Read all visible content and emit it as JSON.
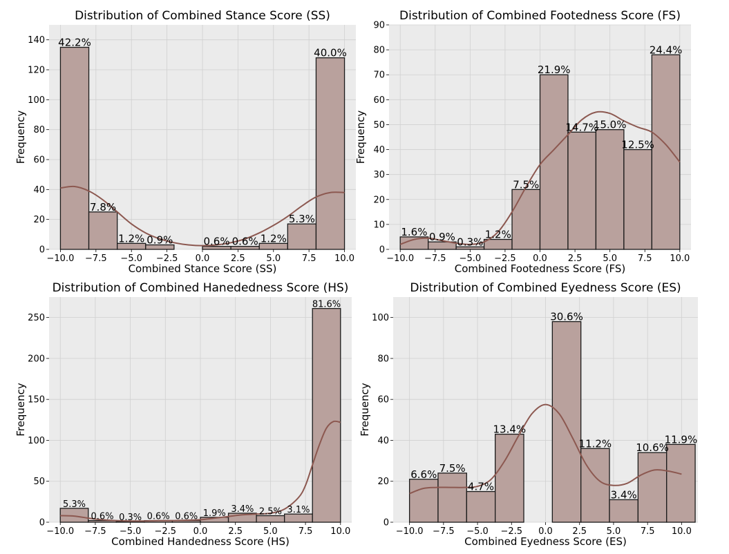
{
  "chart_data": [
    {
      "type": "bar",
      "title": "Distribution of Combined Stance Score (SS)",
      "xlabel": "Combined Stance Score (SS)",
      "ylabel": "Frequency",
      "xlim": [
        -10.8,
        10.8
      ],
      "ylim": [
        0,
        150
      ],
      "xticks": [
        -10,
        -7.5,
        -5,
        -2.5,
        0,
        2.5,
        5,
        7.5,
        10
      ],
      "xtick_labels": [
        "−10.0",
        "−7.5",
        "−5.0",
        "−2.5",
        "0.0",
        "2.5",
        "5.0",
        "7.5",
        "10.0"
      ],
      "yticks": [
        0,
        20,
        40,
        60,
        80,
        100,
        120,
        140
      ],
      "grid": true,
      "bin_edges": [
        -10,
        -8,
        -6,
        -4,
        -2,
        0,
        2,
        4,
        6,
        8,
        10
      ],
      "values": [
        135,
        25,
        4,
        3,
        0,
        2,
        2,
        4,
        17,
        128
      ],
      "bar_labels": [
        "42.2%",
        "7.8%",
        "1.2%",
        "0.9%",
        "",
        "0.6%",
        "0.6%",
        "1.2%",
        "5.3%",
        "40.0%"
      ],
      "kde": [
        [
          -10,
          41
        ],
        [
          -9,
          42
        ],
        [
          -8,
          39
        ],
        [
          -7,
          33
        ],
        [
          -6,
          25
        ],
        [
          -5,
          17
        ],
        [
          -4,
          11
        ],
        [
          -3,
          7
        ],
        [
          -2,
          4.5
        ],
        [
          -1,
          3
        ],
        [
          0,
          2.5
        ],
        [
          1,
          3
        ],
        [
          2,
          4.5
        ],
        [
          3,
          7
        ],
        [
          4,
          11
        ],
        [
          5,
          16
        ],
        [
          6,
          22
        ],
        [
          7,
          29
        ],
        [
          8,
          35
        ],
        [
          9,
          38
        ],
        [
          10,
          38
        ]
      ]
    },
    {
      "type": "bar",
      "title": "Distribution of Combined Footedness Score (FS)",
      "xlabel": "Combined Footedness Score (FS)",
      "ylabel": "Frequency",
      "xlim": [
        -10.8,
        10.8
      ],
      "ylim": [
        0,
        90
      ],
      "xticks": [
        -10,
        -7.5,
        -5,
        -2.5,
        0,
        2.5,
        5,
        7.5,
        10
      ],
      "xtick_labels": [
        "−10.0",
        "−7.5",
        "−5.0",
        "−2.5",
        "0.0",
        "2.5",
        "5.0",
        "7.5",
        "10.0"
      ],
      "yticks": [
        0,
        10,
        20,
        30,
        40,
        50,
        60,
        70,
        80,
        90
      ],
      "grid": true,
      "bin_edges": [
        -10,
        -8,
        -6,
        -4,
        -2,
        0,
        2,
        4,
        6,
        8,
        10
      ],
      "values": [
        5,
        3,
        1,
        4,
        24,
        70,
        47,
        48,
        40,
        78
      ],
      "bar_labels": [
        "1.6%",
        "0.9%",
        "0.3%",
        "1.2%",
        "7.5%",
        "21.9%",
        "14.7%",
        "15.0%",
        "12.5%",
        "24.4%"
      ],
      "kde": [
        [
          -10,
          2
        ],
        [
          -9,
          4
        ],
        [
          -8,
          4.5
        ],
        [
          -7,
          3.5
        ],
        [
          -6,
          2.5
        ],
        [
          -5,
          2
        ],
        [
          -4,
          3
        ],
        [
          -3,
          7
        ],
        [
          -2,
          15
        ],
        [
          -1,
          25
        ],
        [
          0,
          34
        ],
        [
          1,
          40
        ],
        [
          2,
          46
        ],
        [
          3,
          52
        ],
        [
          4,
          55
        ],
        [
          5,
          54.5
        ],
        [
          6,
          51.5
        ],
        [
          7,
          49
        ],
        [
          8,
          47
        ],
        [
          9,
          42
        ],
        [
          10,
          35
        ]
      ]
    },
    {
      "type": "bar",
      "title": "Distribution of Combined Hanededness Score (HS)",
      "xlabel": "Combined Handedness Score (HS)",
      "ylabel": "Frequency",
      "xlim": [
        -10.8,
        10.8
      ],
      "ylim": [
        0,
        275
      ],
      "xticks": [
        -10,
        -7.5,
        -5,
        -2.5,
        0,
        2.5,
        5,
        7.5,
        10
      ],
      "xtick_labels": [
        "−10.0",
        "−7.5",
        "−5.0",
        "−2.5",
        "0.0",
        "2.5",
        "5.0",
        "7.5",
        "10.0"
      ],
      "yticks": [
        0,
        50,
        100,
        150,
        200,
        250
      ],
      "grid": true,
      "bin_edges": [
        -10,
        -8,
        -6,
        -4,
        -2,
        0,
        2,
        4,
        6,
        8,
        10
      ],
      "values": [
        17,
        2,
        1,
        2,
        2,
        6,
        11,
        8,
        10,
        261
      ],
      "bar_labels": [
        "5.3%",
        "0.6%",
        "0.3%",
        "0.6%",
        "0.6%",
        "1.9%",
        "3.4%",
        "2.5%",
        "3.1%",
        "81.6%"
      ],
      "kde": [
        [
          -10,
          8
        ],
        [
          -9,
          7.5
        ],
        [
          -8,
          5
        ],
        [
          -7,
          3
        ],
        [
          -6,
          2
        ],
        [
          -5,
          1.5
        ],
        [
          -4,
          1.5
        ],
        [
          -3,
          2
        ],
        [
          -2,
          2
        ],
        [
          -1,
          2.5
        ],
        [
          0,
          3
        ],
        [
          1,
          5
        ],
        [
          2,
          7
        ],
        [
          3,
          9
        ],
        [
          4,
          10
        ],
        [
          5,
          11
        ],
        [
          6,
          16
        ],
        [
          7,
          30
        ],
        [
          7.5,
          45
        ],
        [
          8,
          70
        ],
        [
          8.5,
          95
        ],
        [
          9,
          115
        ],
        [
          9.5,
          123
        ],
        [
          10,
          122
        ]
      ]
    },
    {
      "type": "bar",
      "title": "Distribution of Combined Eyedness Score (ES)",
      "xlabel": "Combined Eyedness Score (ES)",
      "ylabel": "Frequency",
      "xlim": [
        -11.2,
        11.2
      ],
      "ylim": [
        0,
        110
      ],
      "xticks": [
        -10,
        -7.5,
        -5,
        -2.5,
        0,
        2.5,
        5,
        7.5,
        10
      ],
      "xtick_labels": [
        "−10.0",
        "−7.5",
        "−5.0",
        "−2.5",
        "0.0",
        "2.5",
        "5.0",
        "7.5",
        "10.0"
      ],
      "yticks": [
        0,
        20,
        40,
        60,
        80,
        100
      ],
      "grid": true,
      "bin_edges": [
        -10,
        -7.9,
        -5.8,
        -3.7,
        -1.6,
        0.5,
        2.6,
        4.7,
        6.8,
        8.9,
        11
      ],
      "values": [
        21,
        24,
        15,
        43,
        0,
        98,
        36,
        11,
        34,
        38
      ],
      "bar_labels": [
        "6.6%",
        "7.5%",
        "4.7%",
        "13.4%",
        "",
        "30.6%",
        "11.2%",
        "3.4%",
        "10.6%",
        "11.9%"
      ],
      "kde": [
        [
          -10,
          14
        ],
        [
          -9,
          16.5
        ],
        [
          -8,
          17
        ],
        [
          -7,
          17
        ],
        [
          -6,
          17
        ],
        [
          -5,
          17.5
        ],
        [
          -4,
          21
        ],
        [
          -3,
          30
        ],
        [
          -2,
          42
        ],
        [
          -1,
          53
        ],
        [
          0,
          57.5
        ],
        [
          1,
          53
        ],
        [
          2,
          41
        ],
        [
          3,
          28
        ],
        [
          4,
          20
        ],
        [
          5,
          18
        ],
        [
          6,
          19
        ],
        [
          7,
          23
        ],
        [
          8,
          25.5
        ],
        [
          9,
          25
        ],
        [
          10,
          23.5
        ]
      ]
    }
  ]
}
